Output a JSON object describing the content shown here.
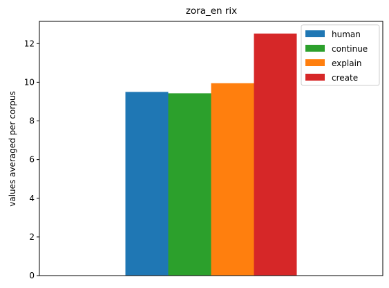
{
  "chart_data": {
    "type": "bar",
    "title": "zora_en rix",
    "xlabel": "",
    "ylabel": "values averaged per corpus",
    "categories": [
      ""
    ],
    "series": [
      {
        "name": "human",
        "values": [
          9.5
        ],
        "color": "#1f77b4"
      },
      {
        "name": "continue",
        "values": [
          9.43
        ],
        "color": "#2ca02c"
      },
      {
        "name": "explain",
        "values": [
          9.95
        ],
        "color": "#ff7f0e"
      },
      {
        "name": "create",
        "values": [
          12.52
        ],
        "color": "#d62728"
      }
    ],
    "ylim": [
      0,
      13.15
    ],
    "yticks": [
      0,
      2,
      4,
      6,
      8,
      10,
      12
    ],
    "ytick_labels": [
      "0",
      "2",
      "4",
      "6",
      "8",
      "10",
      "12"
    ],
    "grid": false,
    "legend_position": "top-right"
  }
}
